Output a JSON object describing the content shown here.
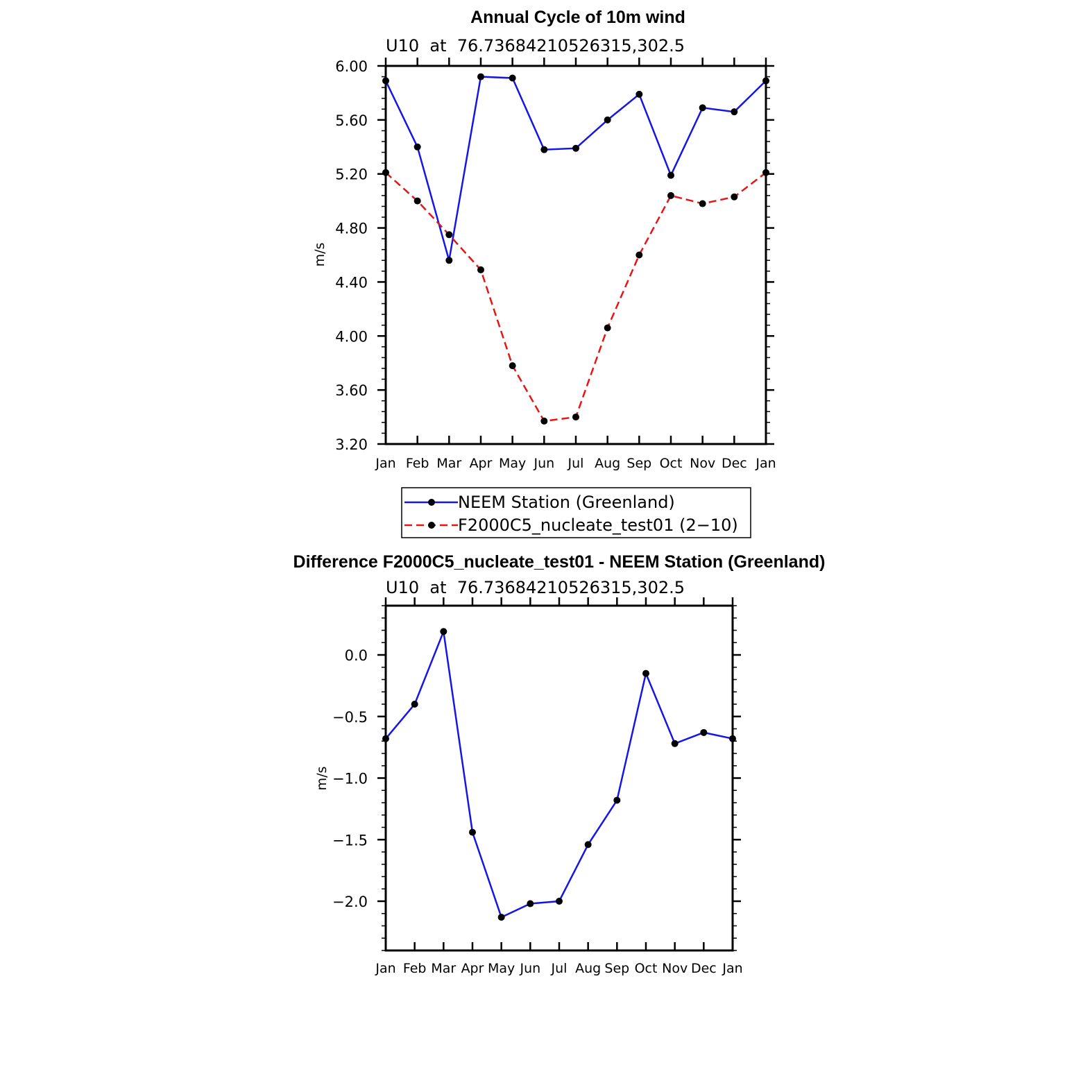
{
  "chart_data": [
    {
      "type": "line",
      "title": "Annual Cycle of 10m wind",
      "subtitle": "U10  at  76.73684210526315,302.5",
      "ylabel": "m/s",
      "xlabel": "",
      "ylim": [
        3.2,
        6.0
      ],
      "yticks": [
        "6.00",
        "5.60",
        "5.20",
        "4.80",
        "4.40",
        "4.00",
        "3.60",
        "3.20"
      ],
      "categories": [
        "Jan",
        "Feb",
        "Mar",
        "Apr",
        "May",
        "Jun",
        "Jul",
        "Aug",
        "Sep",
        "Oct",
        "Nov",
        "Dec",
        "Jan"
      ],
      "series": [
        {
          "name": "NEEM Station (Greenland)",
          "color": "#1515e6",
          "style": "solid",
          "values": [
            5.89,
            5.4,
            4.56,
            5.92,
            5.91,
            5.38,
            5.39,
            5.6,
            5.79,
            5.19,
            5.69,
            5.66,
            5.89
          ]
        },
        {
          "name": "F2000C5_nucleate_test01 (2−10)",
          "color": "#e61515",
          "style": "dashed",
          "values": [
            5.21,
            5.0,
            4.75,
            4.49,
            3.78,
            3.37,
            3.4,
            4.06,
            4.6,
            5.04,
            4.98,
            5.03,
            5.21
          ]
        }
      ],
      "legend_position": "below"
    },
    {
      "type": "line",
      "title": "Difference F2000C5_nucleate_test01 - NEEM Station (Greenland)",
      "subtitle": "U10  at  76.73684210526315,302.5",
      "ylabel": "m/s",
      "xlabel": "",
      "ylim": [
        -2.4,
        0.4
      ],
      "yticks": [
        "0.0",
        "−0.5",
        "−1.0",
        "−1.5",
        "−2.0"
      ],
      "categories": [
        "Jan",
        "Feb",
        "Mar",
        "Apr",
        "May",
        "Jun",
        "Jul",
        "Aug",
        "Sep",
        "Oct",
        "Nov",
        "Dec",
        "Jan"
      ],
      "series": [
        {
          "color": "#1515e6",
          "style": "solid",
          "values": [
            -0.68,
            -0.4,
            0.19,
            -1.44,
            -2.13,
            -2.02,
            -2.0,
            -1.54,
            -1.18,
            -0.15,
            -0.72,
            -0.63,
            -0.68
          ]
        }
      ]
    }
  ]
}
